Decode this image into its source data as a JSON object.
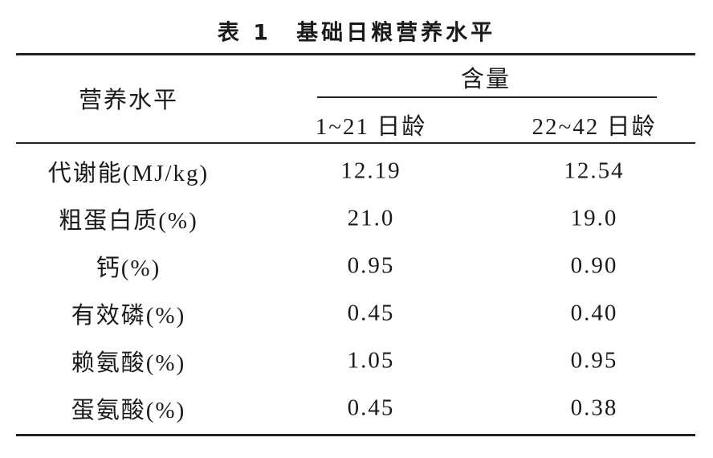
{
  "title": "表 1　基础日粮营养水平",
  "table": {
    "header": {
      "item": "营养水平",
      "group": "含量",
      "columns": [
        "1~21 日龄",
        "22~42 日龄"
      ]
    },
    "rows": [
      [
        "代谢能(MJ/kg)",
        "12.19",
        "12.54"
      ],
      [
        "粗蛋白质(%)",
        "21.0",
        "19.0"
      ],
      [
        "钙(%)",
        "0.95",
        "0.90"
      ],
      [
        "有效磷(%)",
        "0.45",
        "0.40"
      ],
      [
        "赖氨酸(%)",
        "1.05",
        "0.95"
      ],
      [
        "蛋氨酸(%)",
        "0.45",
        "0.38"
      ]
    ]
  }
}
